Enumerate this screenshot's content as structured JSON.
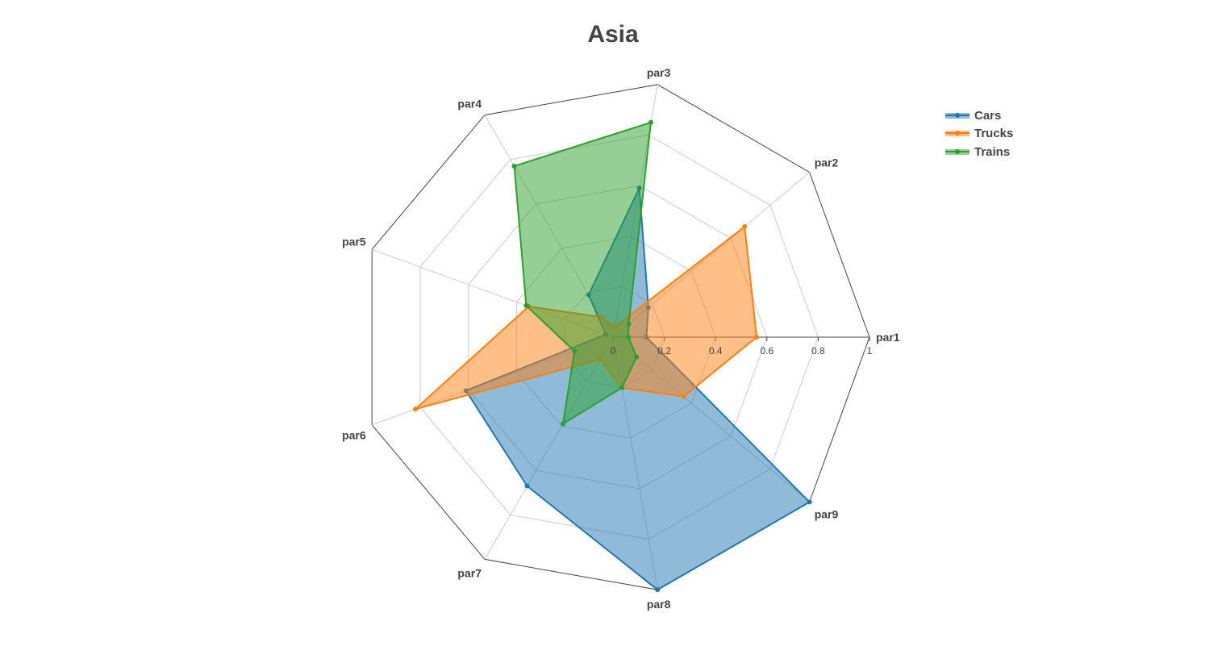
{
  "chart_data": {
    "type": "radar",
    "title": "Asia",
    "axes": [
      "par1",
      "par2",
      "par3",
      "par4",
      "par5",
      "par6",
      "par7",
      "par8",
      "par9"
    ],
    "radial_range": [
      0,
      1
    ],
    "radial_ticks": [
      "0",
      "0.2",
      "0.4",
      "0.6",
      "0.8",
      "1"
    ],
    "radial_tick_values": [
      0,
      0.2,
      0.4,
      0.6,
      0.8,
      1
    ],
    "grid": true,
    "legend_position": "top-right",
    "series": [
      {
        "name": "Cars",
        "color": "#1f77b4",
        "values": [
          0.13,
          0.18,
          0.59,
          0.19,
          0.03,
          0.61,
          0.67,
          1.0,
          1.0
        ]
      },
      {
        "name": "Trucks",
        "color": "#ff7f0e",
        "values": [
          0.56,
          0.67,
          0.04,
          0.09,
          0.35,
          0.82,
          0.1,
          0.2,
          0.36
        ]
      },
      {
        "name": "Trains",
        "color": "#2ca02c",
        "values": [
          0.06,
          0.08,
          0.85,
          0.77,
          0.36,
          0.16,
          0.39,
          0.2,
          0.12
        ]
      }
    ]
  }
}
